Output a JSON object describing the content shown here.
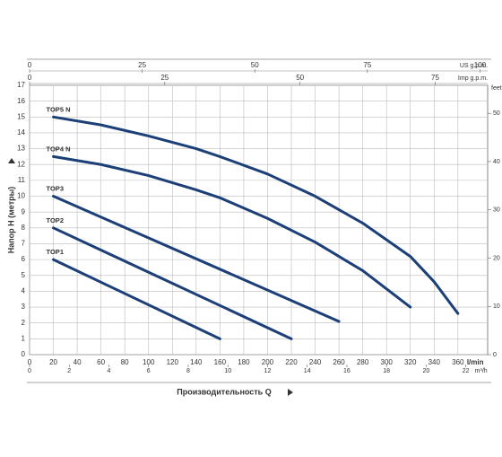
{
  "chart_data": {
    "type": "line",
    "y_label": "Напор H (метры)",
    "x_label": "Производительность Q",
    "x_unit": "l/min",
    "xlim": [
      0,
      385
    ],
    "xticks": [
      0,
      20,
      40,
      60,
      80,
      100,
      120,
      140,
      160,
      180,
      200,
      220,
      240,
      260,
      280,
      300,
      320,
      340,
      360
    ],
    "ylim": [
      0,
      17
    ],
    "yticks": [
      0,
      1,
      2,
      3,
      4,
      5,
      6,
      7,
      8,
      9,
      10,
      11,
      12,
      13,
      14,
      15,
      16,
      17
    ],
    "grid": true,
    "extra_axes": [
      {
        "unit": "US g.p.m.",
        "side": "top",
        "lim": [
          0,
          101.7
        ],
        "ticks": [
          0,
          25,
          50,
          75,
          100
        ]
      },
      {
        "unit": "Imp g.p.m.",
        "side": "top",
        "lim": [
          0,
          84.7
        ],
        "ticks": [
          0,
          25,
          50,
          75
        ]
      },
      {
        "unit": "m³/h",
        "side": "bottom",
        "lim": [
          0,
          23.1
        ],
        "ticks": [
          0,
          2,
          4,
          6,
          8,
          10,
          12,
          14,
          16,
          18,
          20,
          22
        ]
      },
      {
        "unit": "feet",
        "side": "right",
        "lim": [
          0,
          55.8
        ],
        "ticks": [
          0,
          10,
          20,
          30,
          40,
          50
        ]
      }
    ],
    "series": [
      {
        "name": "TOP5 N",
        "color": "#1c3f78",
        "x": [
          20,
          60,
          100,
          140,
          160,
          200,
          240,
          280,
          320,
          340,
          360
        ],
        "values": [
          15,
          14.5,
          13.8,
          13,
          12.5,
          11.4,
          10,
          8.3,
          6.2,
          4.6,
          2.6
        ]
      },
      {
        "name": "TOP4 N",
        "color": "#1c3f78",
        "x": [
          20,
          60,
          100,
          140,
          160,
          200,
          240,
          280,
          320
        ],
        "values": [
          12.5,
          12,
          11.3,
          10.4,
          9.9,
          8.6,
          7.1,
          5.3,
          3
        ]
      },
      {
        "name": "TOP3",
        "color": "#1c3f78",
        "x": [
          20,
          260
        ],
        "values": [
          10,
          2.1
        ]
      },
      {
        "name": "TOP2",
        "color": "#1c3f78",
        "x": [
          20,
          220
        ],
        "values": [
          8,
          1
        ]
      },
      {
        "name": "TOP1",
        "color": "#1c3f78",
        "x": [
          20,
          160
        ],
        "values": [
          6,
          1
        ]
      }
    ]
  }
}
